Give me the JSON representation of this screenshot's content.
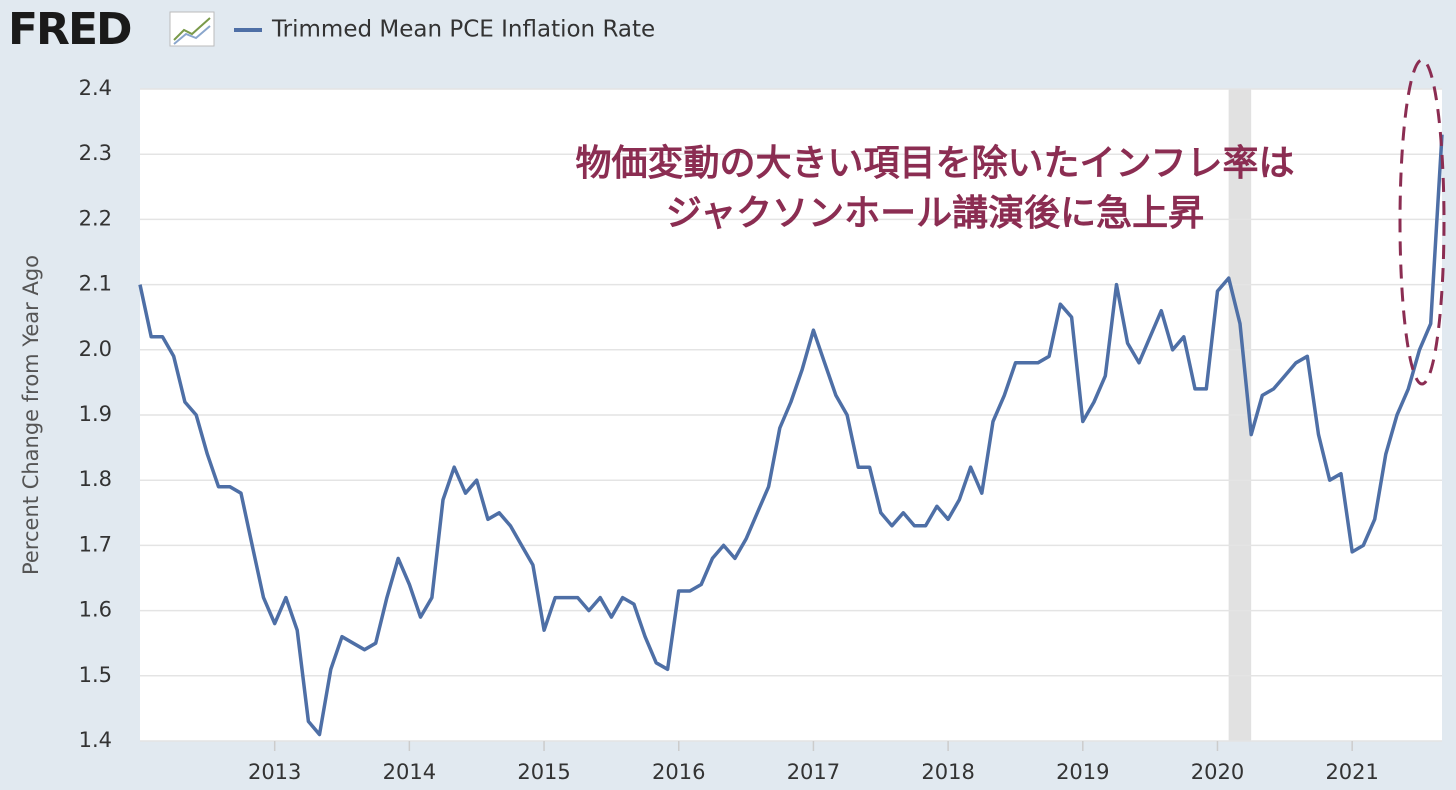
{
  "chart_data": {
    "type": "line",
    "logo": "FRED",
    "ylabel": "Percent Change from Year Ago",
    "annotation": [
      "物価変動の大きい項目を除いたインフレ率は",
      "ジャクソンホール講演後に急上昇"
    ],
    "annotation_color": "#8b2d52",
    "grid": true,
    "recession": [
      2020.083,
      2020.25
    ],
    "xlim": [
      2012,
      2021.667
    ],
    "xticks": [
      2013,
      2014,
      2015,
      2016,
      2017,
      2018,
      2019,
      2020,
      2021
    ],
    "ylim": [
      1.4,
      2.4
    ],
    "yticks": [
      1.4,
      1.5,
      1.6,
      1.7,
      1.8,
      1.9,
      {
        "value": 2,
        "label": "2.0"
      },
      2.1,
      2.2,
      2.3,
      2.4
    ],
    "x": [
      2012,
      2012.083,
      2012.167,
      2012.25,
      2012.333,
      2012.417,
      2012.5,
      2012.583,
      2012.667,
      2012.75,
      2012.833,
      2012.917,
      2013,
      2013.083,
      2013.167,
      2013.25,
      2013.333,
      2013.417,
      2013.5,
      2013.583,
      2013.667,
      2013.75,
      2013.833,
      2013.917,
      2014,
      2014.083,
      2014.167,
      2014.25,
      2014.333,
      2014.417,
      2014.5,
      2014.583,
      2014.667,
      2014.75,
      2014.833,
      2014.917,
      2015,
      2015.083,
      2015.167,
      2015.25,
      2015.333,
      2015.417,
      2015.5,
      2015.583,
      2015.667,
      2015.75,
      2015.833,
      2015.917,
      2016,
      2016.083,
      2016.167,
      2016.25,
      2016.333,
      2016.417,
      2016.5,
      2016.583,
      2016.667,
      2016.75,
      2016.833,
      2016.917,
      2017,
      2017.083,
      2017.167,
      2017.25,
      2017.333,
      2017.417,
      2017.5,
      2017.583,
      2017.667,
      2017.75,
      2017.833,
      2017.917,
      2018,
      2018.083,
      2018.167,
      2018.25,
      2018.333,
      2018.417,
      2018.5,
      2018.583,
      2018.667,
      2018.75,
      2018.833,
      2018.917,
      2019,
      2019.083,
      2019.167,
      2019.25,
      2019.333,
      2019.417,
      2019.5,
      2019.583,
      2019.667,
      2019.75,
      2019.833,
      2019.917,
      2020,
      2020.083,
      2020.167,
      2020.25,
      2020.333,
      2020.417,
      2020.5,
      2020.583,
      2020.667,
      2020.75,
      2020.833,
      2020.917,
      2021,
      2021.083,
      2021.167,
      2021.25,
      2021.333,
      2021.417,
      2021.5,
      2021.583,
      2021.667
    ],
    "series": [
      {
        "name": "Trimmed Mean PCE Inflation Rate",
        "color": "#4e6fa6",
        "values": [
          2.1,
          2.02,
          2.02,
          1.99,
          1.92,
          1.9,
          1.84,
          1.79,
          1.79,
          1.78,
          1.7,
          1.62,
          1.58,
          1.62,
          1.57,
          1.43,
          1.41,
          1.51,
          1.56,
          1.55,
          1.54,
          1.55,
          1.62,
          1.68,
          1.64,
          1.59,
          1.62,
          1.77,
          1.82,
          1.78,
          1.8,
          1.74,
          1.75,
          1.73,
          1.7,
          1.67,
          1.57,
          1.62,
          1.62,
          1.62,
          1.6,
          1.62,
          1.59,
          1.62,
          1.61,
          1.56,
          1.52,
          1.51,
          1.63,
          1.63,
          1.64,
          1.68,
          1.7,
          1.68,
          1.71,
          1.75,
          1.79,
          1.88,
          1.92,
          1.97,
          2.03,
          1.98,
          1.93,
          1.9,
          1.82,
          1.82,
          1.75,
          1.73,
          1.75,
          1.73,
          1.73,
          1.76,
          1.74,
          1.77,
          1.82,
          1.78,
          1.89,
          1.93,
          1.98,
          1.98,
          1.98,
          1.99,
          2.07,
          2.05,
          1.89,
          1.92,
          1.96,
          2.1,
          2.01,
          1.98,
          2.02,
          2.06,
          2.0,
          2.02,
          1.94,
          1.94,
          2.09,
          2.11,
          2.04,
          1.87,
          1.93,
          1.94,
          1.96,
          1.98,
          1.99,
          1.87,
          1.8,
          1.81,
          1.69,
          1.7,
          1.74,
          1.84,
          1.9,
          1.94,
          2.0,
          2.04,
          2.33
        ]
      }
    ]
  }
}
